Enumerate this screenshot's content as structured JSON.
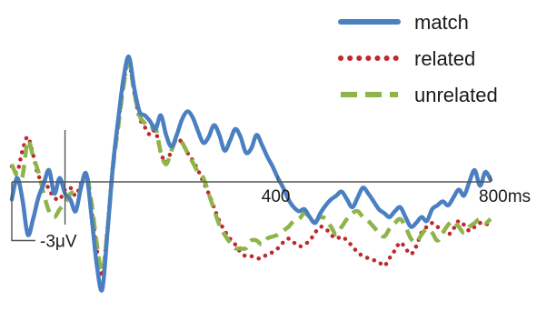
{
  "chart_data": {
    "type": "line",
    "title": "",
    "xlabel": "",
    "ylabel": "",
    "x_unit": "ms",
    "y_unit": "μV",
    "xlim": [
      -100,
      800
    ],
    "ylim_note": "negative up",
    "ylim": [
      -5.5,
      6.5
    ],
    "x_ticks": [
      {
        "value": 400,
        "label": "400"
      },
      {
        "value": 800,
        "label": "800ms"
      }
    ],
    "y_scale_bar": {
      "value": -3,
      "label": "-3μV"
    },
    "legend_position": "top-right",
    "grid": false,
    "x": [
      -100,
      -90,
      -80,
      -70,
      -60,
      -50,
      -40,
      -30,
      -20,
      -10,
      0,
      10,
      20,
      30,
      40,
      50,
      60,
      70,
      80,
      90,
      100,
      110,
      120,
      130,
      140,
      150,
      160,
      170,
      180,
      190,
      200,
      210,
      220,
      230,
      240,
      250,
      260,
      270,
      280,
      290,
      300,
      310,
      320,
      330,
      340,
      350,
      360,
      370,
      380,
      390,
      400,
      410,
      420,
      430,
      440,
      450,
      460,
      470,
      480,
      490,
      500,
      510,
      520,
      530,
      540,
      550,
      560,
      570,
      580,
      590,
      600,
      610,
      620,
      630,
      640,
      650,
      660,
      670,
      680,
      690,
      700,
      710,
      720,
      730,
      740,
      750,
      760,
      770,
      780,
      790,
      800
    ],
    "series": [
      {
        "name": "match",
        "color": "#4a7fc1",
        "style": "solid",
        "values": [
          -0.9,
          0.2,
          -0.9,
          -2.7,
          -1.9,
          -0.8,
          -0.1,
          0.6,
          -0.6,
          0.2,
          -0.6,
          -0.9,
          -1.5,
          -0.3,
          0.4,
          -1.8,
          -4.3,
          -5.5,
          -2.5,
          0.8,
          3.2,
          5.3,
          6.4,
          4.8,
          3.6,
          3.4,
          3.1,
          2.7,
          3.4,
          2.4,
          1.8,
          2.4,
          3.2,
          3.6,
          3.3,
          2.6,
          2.0,
          2.3,
          2.9,
          2.4,
          1.6,
          2.1,
          2.7,
          2.3,
          1.5,
          1.7,
          2.4,
          1.9,
          1.3,
          0.8,
          0.2,
          -0.3,
          -0.9,
          -1.3,
          -1.5,
          -1.4,
          -1.8,
          -2.1,
          -1.6,
          -1.2,
          -0.9,
          -0.7,
          -0.5,
          -0.9,
          -1.3,
          -0.8,
          -0.3,
          -0.6,
          -1.0,
          -1.4,
          -1.6,
          -1.8,
          -1.5,
          -1.3,
          -1.8,
          -2.3,
          -2.1,
          -1.8,
          -2.0,
          -1.4,
          -1.2,
          -1.0,
          -1.2,
          -0.8,
          -0.4,
          -0.7,
          0.0,
          0.6,
          -0.2,
          0.5,
          0.1
        ]
      },
      {
        "name": "related",
        "color": "#c0282d",
        "style": "dotted",
        "values": [
          0.8,
          0.5,
          1.6,
          2.3,
          1.4,
          0.3,
          0.2,
          -0.4,
          -0.8,
          -0.9,
          -0.4,
          -0.3,
          -0.7,
          -0.1,
          0.3,
          -1.5,
          -3.5,
          -4.8,
          -2.3,
          0.9,
          3.0,
          5.1,
          6.1,
          4.6,
          3.3,
          2.8,
          2.4,
          2.6,
          1.5,
          1.0,
          1.6,
          2.2,
          2.0,
          1.5,
          1.1,
          0.6,
          0.0,
          -0.6,
          -1.3,
          -2.0,
          -2.5,
          -2.9,
          -3.2,
          -3.6,
          -3.8,
          -3.8,
          -3.9,
          -3.9,
          -3.7,
          -3.6,
          -3.4,
          -3.1,
          -2.9,
          -3.1,
          -3.3,
          -3.2,
          -3.0,
          -2.6,
          -2.3,
          -2.4,
          -2.7,
          -2.9,
          -2.8,
          -3.0,
          -3.3,
          -3.6,
          -3.8,
          -3.9,
          -4.0,
          -4.1,
          -4.3,
          -3.9,
          -3.5,
          -3.1,
          -3.4,
          -3.7,
          -3.3,
          -2.6,
          -2.3,
          -2.1,
          -2.3,
          -2.5,
          -2.7,
          -2.4,
          -2.0,
          -2.2,
          -2.5,
          -2.3,
          -2.1,
          -2.2,
          -2.0
        ]
      },
      {
        "name": "unrelated",
        "color": "#8fb44a",
        "style": "dashed",
        "values": [
          0.9,
          0.3,
          0.3,
          2.1,
          1.3,
          0.5,
          -0.6,
          -1.5,
          -1.8,
          -1.4,
          -1.1,
          -0.6,
          -0.5,
          -0.2,
          0.4,
          -1.1,
          -3.2,
          -4.6,
          -2.4,
          0.7,
          2.8,
          4.9,
          6.1,
          4.6,
          3.4,
          3.0,
          2.7,
          2.8,
          1.5,
          0.9,
          1.6,
          2.2,
          2.0,
          1.5,
          1.0,
          0.5,
          0.2,
          -0.6,
          -1.4,
          -2.2,
          -2.7,
          -3.1,
          -3.4,
          -3.4,
          -3.4,
          -3.0,
          -3.0,
          -3.2,
          -2.9,
          -2.8,
          -2.7,
          -2.5,
          -2.3,
          -2.0,
          -1.9,
          -1.6,
          -1.8,
          -2.0,
          -1.8,
          -1.9,
          -2.3,
          -2.7,
          -2.3,
          -1.9,
          -1.6,
          -1.5,
          -1.8,
          -2.0,
          -2.3,
          -2.6,
          -2.8,
          -2.4,
          -2.1,
          -1.9,
          -2.3,
          -2.9,
          -3.1,
          -2.7,
          -2.4,
          -2.6,
          -3.0,
          -2.6,
          -2.2,
          -2.0,
          -2.3,
          -2.6,
          -2.3,
          -2.1,
          -1.9,
          -2.1,
          -1.9
        ]
      }
    ]
  }
}
